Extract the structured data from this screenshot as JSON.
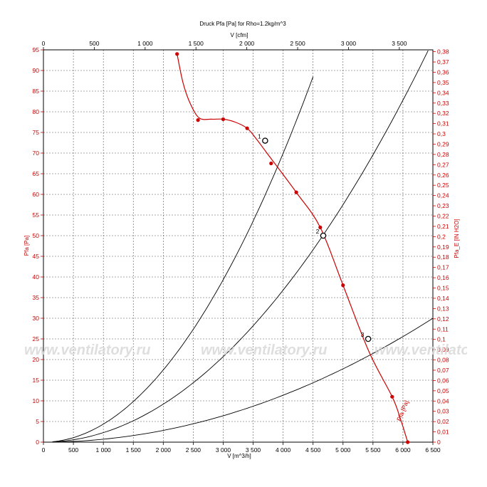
{
  "chart_data": {
    "type": "line",
    "title": "Druck Pfa [Pa] for Rho=1.2kg/m^3",
    "top_axis": {
      "label": "V [cfm]",
      "range": [
        0,
        3830
      ],
      "ticks": [
        0,
        500,
        1000,
        1500,
        2000,
        2500,
        3000,
        3500
      ],
      "tick_labels": [
        "0",
        "500",
        "1 000",
        "1 500",
        "2 000",
        "2 500",
        "3 000",
        "3 500"
      ]
    },
    "x_axis": {
      "label": "V [m^3/h]",
      "range": [
        0,
        6500
      ],
      "ticks": [
        0,
        500,
        1000,
        1500,
        2000,
        2500,
        3000,
        3500,
        4000,
        4500,
        5000,
        5500,
        6000,
        6500
      ],
      "tick_labels": [
        "0",
        "500",
        "1 000",
        "1 500",
        "2 000",
        "2 500",
        "3 000",
        "3 500",
        "4 000",
        "4 500",
        "5 000",
        "5 500",
        "6 000",
        "6 500"
      ]
    },
    "y_axis": {
      "label": "Pfa [Pa]",
      "range": [
        0,
        95
      ],
      "ticks": [
        0,
        5,
        10,
        15,
        20,
        25,
        30,
        35,
        40,
        45,
        50,
        55,
        60,
        65,
        70,
        75,
        80,
        85,
        90,
        95
      ],
      "tick_labels": [
        "0",
        "5",
        "10",
        "15",
        "20",
        "25",
        "30",
        "35",
        "40",
        "45",
        "50",
        "55",
        "60",
        "65",
        "70",
        "75",
        "80",
        "85",
        "90",
        "95"
      ]
    },
    "y2_axis": {
      "label": "Pfa_E [IN H2O]",
      "range": [
        0,
        0.3818
      ],
      "ticks": [
        0,
        0.01,
        0.02,
        0.03,
        0.04,
        0.05,
        0.06,
        0.07,
        0.08,
        0.09,
        0.1,
        0.11,
        0.12,
        0.13,
        0.14,
        0.15,
        0.16,
        0.17,
        0.18,
        0.19,
        0.2,
        0.21,
        0.22,
        0.23,
        0.24,
        0.25,
        0.26,
        0.27,
        0.28,
        0.29,
        0.3,
        0.31,
        0.32,
        0.33,
        0.34,
        0.35,
        0.36,
        0.37,
        0.38
      ],
      "tick_labels": [
        "0",
        "0,01",
        "0,02",
        "0,03",
        "0,04",
        "0,05",
        "0,06",
        "0,07",
        "0,08",
        "0,09",
        "0,1",
        "0,11",
        "0,12",
        "0,13",
        "0,14",
        "0,15",
        "0,16",
        "0,17",
        "0,18",
        "0,19",
        "0,2",
        "0,21",
        "0,22",
        "0,23",
        "0,24",
        "0,25",
        "0,26",
        "0,27",
        "0,28",
        "0,29",
        "0,3",
        "0,31",
        "0,32",
        "0,33",
        "0,34",
        "0,35",
        "0,36",
        "0,37",
        "0,38"
      ]
    },
    "grid": true,
    "fan_curve": {
      "label": "Pfa [Pa]",
      "color": "#cc0000",
      "curve": [
        [
          2230,
          94
        ],
        [
          2330,
          87
        ],
        [
          2450,
          82
        ],
        [
          2600,
          78.5
        ],
        [
          2800,
          78.2
        ],
        [
          3000,
          78.2
        ],
        [
          3200,
          77.5
        ],
        [
          3400,
          76
        ],
        [
          3550,
          73.5
        ],
        [
          3730,
          70
        ],
        [
          4220,
          60.5
        ],
        [
          4620,
          52
        ],
        [
          5000,
          38
        ],
        [
          5430,
          22
        ],
        [
          5820,
          11
        ],
        [
          5950,
          6
        ],
        [
          6080,
          0
        ]
      ],
      "markers": [
        [
          2230,
          94
        ],
        [
          2580,
          78
        ],
        [
          3000,
          78.2
        ],
        [
          3400,
          76
        ],
        [
          3800,
          67.5
        ],
        [
          4220,
          60.5
        ],
        [
          4620,
          52
        ],
        [
          5000,
          38
        ],
        [
          5820,
          11
        ],
        [
          6080,
          0
        ]
      ]
    },
    "system_curves": [
      {
        "k": 4.37e-06,
        "x_max": 4500
      },
      {
        "k": 2.3e-06,
        "x_max": 6500
      },
      {
        "k": 7.1e-07,
        "x_max": 6500
      }
    ],
    "operating_points": [
      {
        "label": "1",
        "x": 3700,
        "y": 73
      },
      {
        "label": "2",
        "x": 4670,
        "y": 50
      },
      {
        "label": "3",
        "x": 5420,
        "y": 25
      }
    ]
  },
  "watermark": {
    "text": "www.ventilatory.ru",
    "color": "#d9d9d9"
  }
}
